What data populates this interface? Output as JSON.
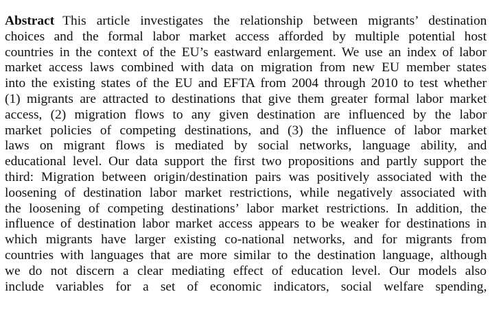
{
  "abstract": {
    "label": "Abstract",
    "lines": [
      "This article investigates the relationship between migrants’ destination",
      "choices and the formal labor market access afforded by multiple potential host",
      "countries in the context of the EU’s eastward enlargement. We use an index of labor",
      "market access laws combined with data on migration from new EU member states",
      "into the existing states of the EU and EFTA from 2004 through 2010 to test whether",
      "(1) migrants are attracted to destinations that give them greater formal labor market",
      "access, (2) migration flows to any given destination are influenced by the labor",
      "market policies of competing destinations, and (3) the influence of labor market",
      "laws on migrant flows is mediated by social networks, language ability, and",
      "educational level. Our data support the first two propositions and partly support the",
      "third: Migration between origin/destination pairs was positively associated with the",
      "loosening of destination labor market restrictions, while negatively associated with",
      "the loosening of competing destinations’ labor market restrictions. In addition, the",
      "influence of destination labor market access appears to be weaker for destinations in",
      "which migrants have larger existing co-national networks, and for migrants from",
      "countries with languages that are more similar to the destination language, although",
      "we do not discern a clear mediating effect of education level. Our models also",
      "include variables for a set of economic indicators, social welfare spending,"
    ]
  }
}
